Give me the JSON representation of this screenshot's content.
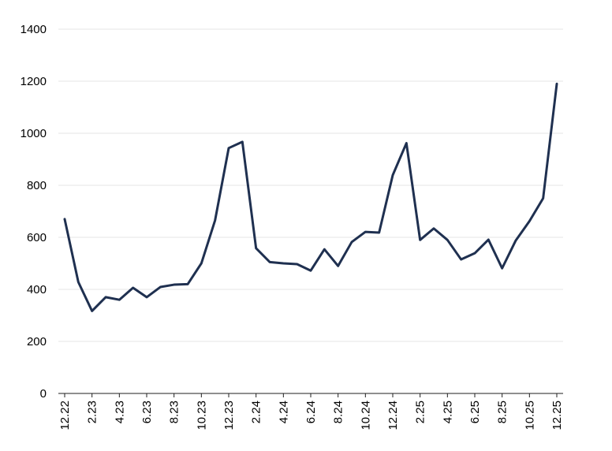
{
  "chart_data": {
    "type": "line",
    "title": "",
    "xlabel": "",
    "ylabel": "",
    "ylim": [
      0,
      1400
    ],
    "yticks": [
      0,
      200,
      400,
      600,
      800,
      1000,
      1200,
      1400
    ],
    "grid": "horizontal",
    "legend": "none",
    "x": [
      "12.22",
      "1.23",
      "2.23",
      "3.23",
      "4.23",
      "5.23",
      "6.23",
      "7.23",
      "8.23",
      "9.23",
      "10.23",
      "11.23",
      "12.23",
      "1.24",
      "2.24",
      "3.24",
      "4.24",
      "5.24",
      "6.24",
      "7.24",
      "8.24",
      "9.24",
      "10.24",
      "11.24",
      "12.24",
      "1.25",
      "2.25",
      "3.25",
      "4.25",
      "5.25",
      "6.25",
      "7.25",
      "8.25",
      "9.25",
      "10.25",
      "11.25",
      "12.25"
    ],
    "xticks": [
      "12.22",
      "2.23",
      "4.23",
      "6.23",
      "8.23",
      "10.23",
      "12.23",
      "2.24",
      "4.24",
      "6.24",
      "8.24",
      "10.24",
      "12.24",
      "2.25",
      "4.25",
      "6.25",
      "8.25",
      "10.25",
      "12.25"
    ],
    "series": [
      {
        "name": "",
        "color": "#1f3050",
        "values": [
          670,
          428,
          317,
          370,
          360,
          406,
          370,
          409,
          418,
          420,
          500,
          665,
          943,
          967,
          558,
          505,
          500,
          497,
          472,
          554,
          490,
          582,
          621,
          618,
          839,
          962,
          590,
          634,
          590,
          515,
          539,
          591,
          481,
          588,
          662,
          750,
          1190
        ]
      }
    ]
  }
}
